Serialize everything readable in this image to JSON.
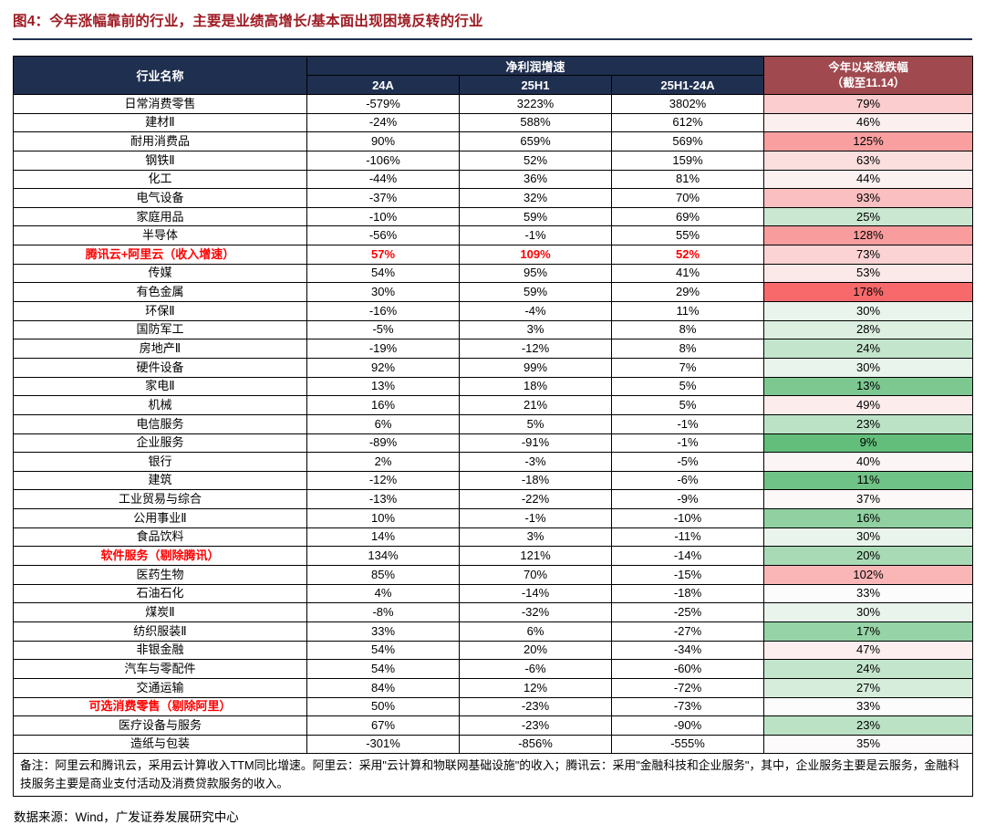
{
  "title": "图4：今年涨幅靠前的行业，主要是业绩高增长/基本面出现困境反转的行业",
  "colors": {
    "title_red": "#9E1B23",
    "header_navy": "#1F2F4F",
    "header_maroon": "#A0494F",
    "special_text_red": "#FF0000",
    "rule_navy": "#1F2F4F"
  },
  "table": {
    "header": {
      "industry": "行业名称",
      "profit_group": "净利润增速",
      "cols": [
        "24A",
        "25H1",
        "25H1-24A"
      ],
      "ytd_line1": "今年以来涨跌幅",
      "ytd_line2": "（截至11.14）"
    }
  },
  "chart_data": {
    "type": "table",
    "title": "图4：今年涨幅靠前的行业，主要是业绩高增长/基本面出现困境反转的行业",
    "unit": "%",
    "columns": [
      "行业名称",
      "净利润增速 24A",
      "净利润增速 25H1",
      "净利润增速 25H1-24A",
      "今年以来涨跌幅（截至11.14）"
    ],
    "ytd_color_scale": {
      "min": 9,
      "mid": 33,
      "max": 178,
      "min_color": "#63BE7B",
      "mid_color": "#FCFCFC",
      "max_color": "#F8696B"
    },
    "rows": [
      {
        "name": "日常消费零售",
        "a24": -579,
        "h25": 3223,
        "diff": 3802,
        "ytd": 79,
        "name_red": false,
        "values_red": false
      },
      {
        "name": "建材Ⅱ",
        "a24": -24,
        "h25": 588,
        "diff": 612,
        "ytd": 46,
        "name_red": false,
        "values_red": false
      },
      {
        "name": "耐用消费品",
        "a24": 90,
        "h25": 659,
        "diff": 569,
        "ytd": 125,
        "name_red": false,
        "values_red": false
      },
      {
        "name": "钢铁Ⅱ",
        "a24": -106,
        "h25": 52,
        "diff": 159,
        "ytd": 63,
        "name_red": false,
        "values_red": false
      },
      {
        "name": "化工",
        "a24": -44,
        "h25": 36,
        "diff": 81,
        "ytd": 44,
        "name_red": false,
        "values_red": false
      },
      {
        "name": "电气设备",
        "a24": -37,
        "h25": 32,
        "diff": 70,
        "ytd": 93,
        "name_red": false,
        "values_red": false
      },
      {
        "name": "家庭用品",
        "a24": -10,
        "h25": 59,
        "diff": 69,
        "ytd": 25,
        "name_red": false,
        "values_red": false
      },
      {
        "name": "半导体",
        "a24": -56,
        "h25": -1,
        "diff": 55,
        "ytd": 128,
        "name_red": false,
        "values_red": false
      },
      {
        "name": "腾讯云+阿里云（收入增速）",
        "a24": 57,
        "h25": 109,
        "diff": 52,
        "ytd": 73,
        "name_red": true,
        "values_red": true
      },
      {
        "name": "传媒",
        "a24": 54,
        "h25": 95,
        "diff": 41,
        "ytd": 53,
        "name_red": false,
        "values_red": false
      },
      {
        "name": "有色金属",
        "a24": 30,
        "h25": 59,
        "diff": 29,
        "ytd": 178,
        "name_red": false,
        "values_red": false
      },
      {
        "name": "环保Ⅱ",
        "a24": -16,
        "h25": -4,
        "diff": 11,
        "ytd": 30,
        "name_red": false,
        "values_red": false
      },
      {
        "name": "国防军工",
        "a24": -5,
        "h25": 3,
        "diff": 8,
        "ytd": 28,
        "name_red": false,
        "values_red": false
      },
      {
        "name": "房地产Ⅱ",
        "a24": -19,
        "h25": -12,
        "diff": 8,
        "ytd": 24,
        "name_red": false,
        "values_red": false
      },
      {
        "name": "硬件设备",
        "a24": 92,
        "h25": 99,
        "diff": 7,
        "ytd": 30,
        "name_red": false,
        "values_red": false
      },
      {
        "name": "家电Ⅱ",
        "a24": 13,
        "h25": 18,
        "diff": 5,
        "ytd": 13,
        "name_red": false,
        "values_red": false
      },
      {
        "name": "机械",
        "a24": 16,
        "h25": 21,
        "diff": 5,
        "ytd": 49,
        "name_red": false,
        "values_red": false
      },
      {
        "name": "电信服务",
        "a24": 6,
        "h25": 5,
        "diff": -1,
        "ytd": 23,
        "name_red": false,
        "values_red": false
      },
      {
        "name": "企业服务",
        "a24": -89,
        "h25": -91,
        "diff": -1,
        "ytd": 9,
        "name_red": false,
        "values_red": false
      },
      {
        "name": "银行",
        "a24": 2,
        "h25": -3,
        "diff": -5,
        "ytd": 40,
        "name_red": false,
        "values_red": false
      },
      {
        "name": "建筑",
        "a24": -12,
        "h25": -18,
        "diff": -6,
        "ytd": 11,
        "name_red": false,
        "values_red": false
      },
      {
        "name": "工业贸易与综合",
        "a24": -13,
        "h25": -22,
        "diff": -9,
        "ytd": 37,
        "name_red": false,
        "values_red": false
      },
      {
        "name": "公用事业Ⅱ",
        "a24": 10,
        "h25": -1,
        "diff": -10,
        "ytd": 16,
        "name_red": false,
        "values_red": false
      },
      {
        "name": "食品饮料",
        "a24": 14,
        "h25": 3,
        "diff": -11,
        "ytd": 30,
        "name_red": false,
        "values_red": false
      },
      {
        "name": "软件服务（剔除腾讯）",
        "a24": 134,
        "h25": 121,
        "diff": -14,
        "ytd": 20,
        "name_red": true,
        "values_red": false
      },
      {
        "name": "医药生物",
        "a24": 85,
        "h25": 70,
        "diff": -15,
        "ytd": 102,
        "name_red": false,
        "values_red": false
      },
      {
        "name": "石油石化",
        "a24": 4,
        "h25": -14,
        "diff": -18,
        "ytd": 33,
        "name_red": false,
        "values_red": false
      },
      {
        "name": "煤炭Ⅱ",
        "a24": -8,
        "h25": -32,
        "diff": -25,
        "ytd": 30,
        "name_red": false,
        "values_red": false
      },
      {
        "name": "纺织服装Ⅱ",
        "a24": 33,
        "h25": 6,
        "diff": -27,
        "ytd": 17,
        "name_red": false,
        "values_red": false
      },
      {
        "name": "非银金融",
        "a24": 54,
        "h25": 20,
        "diff": -34,
        "ytd": 47,
        "name_red": false,
        "values_red": false
      },
      {
        "name": "汽车与零配件",
        "a24": 54,
        "h25": -6,
        "diff": -60,
        "ytd": 24,
        "name_red": false,
        "values_red": false
      },
      {
        "name": "交通运输",
        "a24": 84,
        "h25": 12,
        "diff": -72,
        "ytd": 27,
        "name_red": false,
        "values_red": false
      },
      {
        "name": "可选消费零售（剔除阿里）",
        "a24": 50,
        "h25": -23,
        "diff": -73,
        "ytd": 33,
        "name_red": true,
        "values_red": false
      },
      {
        "name": "医疗设备与服务",
        "a24": 67,
        "h25": -23,
        "diff": -90,
        "ytd": 23,
        "name_red": false,
        "values_red": false
      },
      {
        "name": "造纸与包装",
        "a24": -301,
        "h25": -856,
        "diff": -555,
        "ytd": 35,
        "name_red": false,
        "values_red": false
      }
    ]
  },
  "notes": "备注：阿里云和腾讯云，采用云计算收入TTM同比增速。阿里云：采用\"云计算和物联网基础设施\"的收入；腾讯云：采用\"金融科技和企业服务\"，其中，企业服务主要是云服务，金融科技服务主要是商业支付活动及消费贷款服务的收入。",
  "source": "数据来源：Wind，广发证券发展研究中心"
}
